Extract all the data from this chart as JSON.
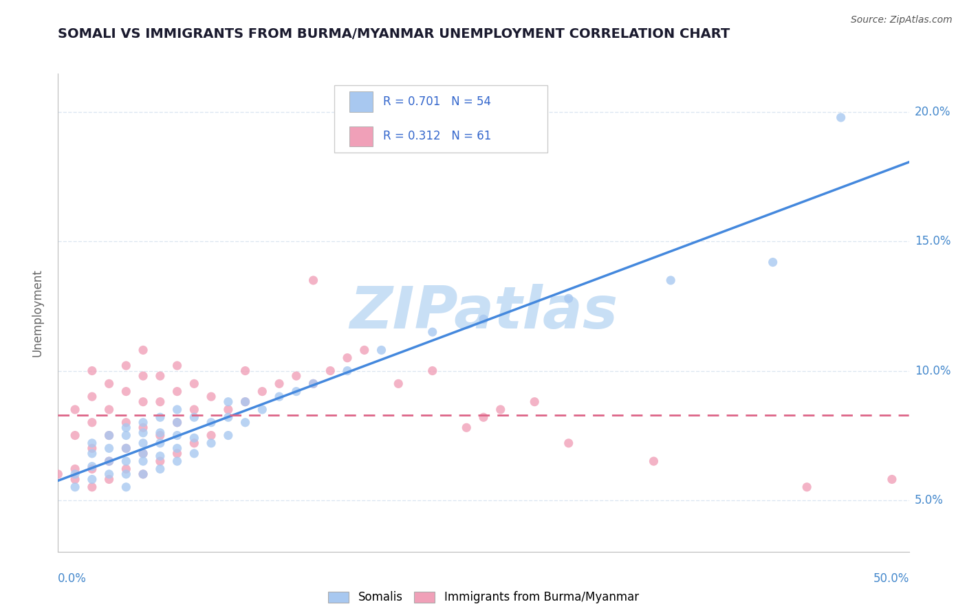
{
  "title": "SOMALI VS IMMIGRANTS FROM BURMA/MYANMAR UNEMPLOYMENT CORRELATION CHART",
  "source": "Source: ZipAtlas.com",
  "ylabel": "Unemployment",
  "yticks": [
    0.05,
    0.1,
    0.15,
    0.2
  ],
  "ytick_labels": [
    "5.0%",
    "10.0%",
    "15.0%",
    "20.0%"
  ],
  "xlim": [
    0.0,
    0.5
  ],
  "ylim": [
    0.03,
    0.215
  ],
  "blue_color": "#a8c8f0",
  "pink_color": "#f0a0b8",
  "trendline_blue": "#4488dd",
  "trendline_pink": "#dd6688",
  "watermark": "ZIPatlas",
  "watermark_color": "#c8dff5",
  "grid_color": "#d8e4f0",
  "somali_x": [
    0.01,
    0.01,
    0.02,
    0.02,
    0.02,
    0.02,
    0.03,
    0.03,
    0.03,
    0.03,
    0.04,
    0.04,
    0.04,
    0.04,
    0.04,
    0.04,
    0.05,
    0.05,
    0.05,
    0.05,
    0.05,
    0.05,
    0.06,
    0.06,
    0.06,
    0.06,
    0.06,
    0.07,
    0.07,
    0.07,
    0.07,
    0.07,
    0.08,
    0.08,
    0.08,
    0.09,
    0.09,
    0.1,
    0.1,
    0.1,
    0.11,
    0.11,
    0.12,
    0.13,
    0.14,
    0.15,
    0.17,
    0.19,
    0.22,
    0.25,
    0.3,
    0.36,
    0.42,
    0.46
  ],
  "somali_y": [
    0.055,
    0.06,
    0.058,
    0.063,
    0.068,
    0.072,
    0.06,
    0.065,
    0.07,
    0.075,
    0.055,
    0.06,
    0.065,
    0.07,
    0.075,
    0.078,
    0.06,
    0.065,
    0.068,
    0.072,
    0.076,
    0.08,
    0.062,
    0.067,
    0.072,
    0.076,
    0.082,
    0.065,
    0.07,
    0.075,
    0.08,
    0.085,
    0.068,
    0.074,
    0.082,
    0.072,
    0.08,
    0.075,
    0.082,
    0.088,
    0.08,
    0.088,
    0.085,
    0.09,
    0.092,
    0.095,
    0.1,
    0.108,
    0.115,
    0.12,
    0.128,
    0.135,
    0.142,
    0.198
  ],
  "burma_x": [
    0.0,
    0.01,
    0.01,
    0.01,
    0.01,
    0.02,
    0.02,
    0.02,
    0.02,
    0.02,
    0.02,
    0.03,
    0.03,
    0.03,
    0.03,
    0.03,
    0.04,
    0.04,
    0.04,
    0.04,
    0.04,
    0.05,
    0.05,
    0.05,
    0.05,
    0.05,
    0.05,
    0.06,
    0.06,
    0.06,
    0.06,
    0.07,
    0.07,
    0.07,
    0.07,
    0.08,
    0.08,
    0.08,
    0.09,
    0.09,
    0.1,
    0.11,
    0.11,
    0.12,
    0.13,
    0.14,
    0.15,
    0.15,
    0.16,
    0.17,
    0.18,
    0.2,
    0.22,
    0.24,
    0.25,
    0.26,
    0.28,
    0.3,
    0.35,
    0.44,
    0.49
  ],
  "burma_y": [
    0.06,
    0.058,
    0.062,
    0.075,
    0.085,
    0.055,
    0.062,
    0.07,
    0.08,
    0.09,
    0.1,
    0.058,
    0.065,
    0.075,
    0.085,
    0.095,
    0.062,
    0.07,
    0.08,
    0.092,
    0.102,
    0.06,
    0.068,
    0.078,
    0.088,
    0.098,
    0.108,
    0.065,
    0.075,
    0.088,
    0.098,
    0.068,
    0.08,
    0.092,
    0.102,
    0.072,
    0.085,
    0.095,
    0.075,
    0.09,
    0.085,
    0.088,
    0.1,
    0.092,
    0.095,
    0.098,
    0.095,
    0.135,
    0.1,
    0.105,
    0.108,
    0.095,
    0.1,
    0.078,
    0.082,
    0.085,
    0.088,
    0.072,
    0.065,
    0.055,
    0.058
  ]
}
